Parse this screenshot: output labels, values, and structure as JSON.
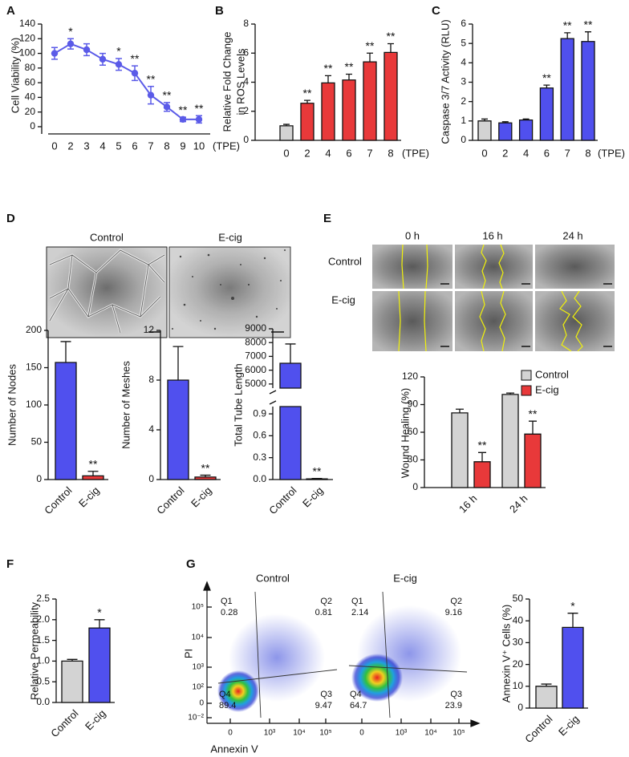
{
  "panel_labels": [
    "A",
    "B",
    "C",
    "D",
    "E",
    "F",
    "G"
  ],
  "micrographs_D": {
    "columns": [
      "Control",
      "E-cig"
    ]
  },
  "wound_images_E": {
    "columns": [
      "0 h",
      "16 h",
      "24 h"
    ],
    "rows": [
      "Control",
      "E-cig"
    ]
  },
  "flow_cytometry_G": {
    "ylabel": "PI",
    "xlabel": "Annexin V",
    "yticks": [
      "10⁵",
      "10⁴",
      "10³",
      "10²",
      "0",
      "10⁻²"
    ],
    "xticks": [
      "0",
      "10³",
      "10⁴",
      "10⁵"
    ],
    "plots": [
      {
        "title": "Control",
        "quadrants": [
          {
            "label": "Q1",
            "value": 0.28
          },
          {
            "label": "Q2",
            "value": 0.81
          },
          {
            "label": "Q3",
            "value": 9.47
          },
          {
            "label": "Q4",
            "value": 89.4
          }
        ]
      },
      {
        "title": "E-cig",
        "quadrants": [
          {
            "label": "Q1",
            "value": 2.14
          },
          {
            "label": "Q2",
            "value": 9.16
          },
          {
            "label": "Q3",
            "value": 23.9
          },
          {
            "label": "Q4",
            "value": 64.7
          }
        ]
      }
    ]
  },
  "chart_data": [
    {
      "type": "line",
      "ylabel": "Cell Viability (%)",
      "xlabel": "(TPE)",
      "categories": [
        "0",
        "2",
        "3",
        "4",
        "5",
        "6",
        "7",
        "8",
        "9",
        "10"
      ],
      "values": [
        100,
        113,
        105,
        92,
        85,
        73,
        43,
        27,
        10,
        10
      ],
      "errors": [
        8,
        7,
        8,
        8,
        8,
        10,
        12,
        6,
        3,
        5
      ],
      "annotations": [
        null,
        "*",
        null,
        null,
        "*",
        "**",
        "**",
        "**",
        "**",
        "**"
      ],
      "color": "#5b5be8",
      "ylim": [
        0,
        140
      ],
      "yticks": [
        0,
        20,
        40,
        60,
        80,
        100,
        120,
        140
      ]
    },
    {
      "type": "bar",
      "ylabel": [
        "Relative Fold Change",
        "in ROS Levels"
      ],
      "xlabel": "(TPE)",
      "categories": [
        "0",
        "2",
        "4",
        "6",
        "7",
        "8"
      ],
      "values": [
        1,
        2.55,
        3.95,
        4.15,
        5.4,
        6.05
      ],
      "errors": [
        0.1,
        0.2,
        0.5,
        0.4,
        0.6,
        0.6
      ],
      "annotations": [
        null,
        "**",
        "**",
        "**",
        "**",
        "**"
      ],
      "colors": [
        "#d3d3d3",
        "#e8393a",
        "#e8393a",
        "#e8393a",
        "#e8393a",
        "#e8393a"
      ],
      "ylim": [
        0,
        8
      ],
      "yticks": [
        0,
        2,
        4,
        6,
        8
      ]
    },
    {
      "type": "bar",
      "ylabel": "Caspase 3/7 Activity (RLU)",
      "xlabel": "(TPE)",
      "categories": [
        "0",
        "2",
        "4",
        "6",
        "7",
        "8"
      ],
      "values": [
        1,
        0.9,
        1.05,
        2.7,
        5.25,
        5.1
      ],
      "errors": [
        0.1,
        0.06,
        0.05,
        0.15,
        0.3,
        0.5
      ],
      "annotations": [
        null,
        null,
        null,
        "**",
        "**",
        "**"
      ],
      "colors": [
        "#d3d3d3",
        "#5050ee",
        "#5050ee",
        "#5050ee",
        "#5050ee",
        "#5050ee"
      ],
      "ylim": [
        0,
        6
      ],
      "yticks": [
        0,
        1,
        2,
        3,
        4,
        5,
        6
      ]
    },
    {
      "type": "bar",
      "ylabel": "Number of Nodes",
      "categories": [
        "Control",
        "E-cig"
      ],
      "values": [
        157,
        5
      ],
      "errors": [
        28,
        6
      ],
      "annotations": [
        null,
        "**"
      ],
      "colors": [
        "#5050ee",
        "#e8393a"
      ],
      "ylim": [
        0,
        200
      ],
      "yticks": [
        0,
        50,
        100,
        150,
        200
      ]
    },
    {
      "type": "bar",
      "ylabel": "Number of Meshes",
      "categories": [
        "Control",
        "E-cig"
      ],
      "values": [
        8,
        0.2
      ],
      "errors": [
        2.7,
        0.15
      ],
      "annotations": [
        null,
        "**"
      ],
      "colors": [
        "#5050ee",
        "#e8393a"
      ],
      "ylim": [
        0,
        12
      ],
      "yticks": [
        0,
        4,
        8,
        12
      ]
    },
    {
      "type": "bar",
      "ylabel": "Total Tube Length",
      "categories": [
        "Control",
        "E-cig"
      ],
      "values": [
        6500,
        0.01
      ],
      "errors": [
        1400,
        0.005
      ],
      "annotations": [
        null,
        "**"
      ],
      "colors": [
        "#5050ee",
        "#e8393a"
      ],
      "segments": [
        {
          "ylim": [
            0,
            1
          ],
          "yticks": [
            {
              "value": 0,
              "label": "0.0"
            },
            0.3,
            0.6,
            0.9
          ]
        },
        {
          "ylim": [
            4700,
            9000
          ],
          "yticks": [
            5000,
            6000,
            7000,
            8000,
            9000
          ]
        }
      ]
    },
    {
      "type": "bar",
      "ylabel": "Wound Healing (%)",
      "categories": [
        "16 h",
        "24 h"
      ],
      "series": [
        {
          "name": "Control",
          "color": "#d3d3d3",
          "values": [
            81,
            101
          ],
          "errors": [
            4,
            1.5
          ],
          "annotations": [
            null,
            null
          ]
        },
        {
          "name": "E-cig",
          "color": "#e8393a",
          "values": [
            28,
            58
          ],
          "errors": [
            10,
            14
          ],
          "annotations": [
            "**",
            "**"
          ]
        }
      ],
      "ylim": [
        0,
        120
      ],
      "yticks": [
        0,
        30,
        60,
        90,
        120
      ],
      "legend": "upper right"
    },
    {
      "type": "bar",
      "ylabel": "Relative Permeability",
      "categories": [
        "Control",
        "E-cig"
      ],
      "values": [
        1.0,
        1.8
      ],
      "errors": [
        0.04,
        0.2
      ],
      "annotations": [
        null,
        "*"
      ],
      "colors": [
        "#d3d3d3",
        "#5050ee"
      ],
      "ylim": [
        0,
        2.5
      ],
      "yticks": [
        {
          "value": 0,
          "label": "0.0"
        },
        0.5,
        {
          "value": 1,
          "label": "1.0"
        },
        1.5,
        {
          "value": 2,
          "label": "2.0"
        },
        2.5
      ]
    },
    {
      "type": "bar",
      "ylabel": "Annexin V⁺ Cells (%)",
      "categories": [
        "Control",
        "E-cig"
      ],
      "values": [
        10,
        37
      ],
      "errors": [
        1,
        6.5
      ],
      "annotations": [
        null,
        "*"
      ],
      "colors": [
        "#d3d3d3",
        "#5050ee"
      ],
      "ylim": [
        0,
        50
      ],
      "yticks": [
        0,
        10,
        20,
        30,
        40,
        50
      ]
    }
  ]
}
